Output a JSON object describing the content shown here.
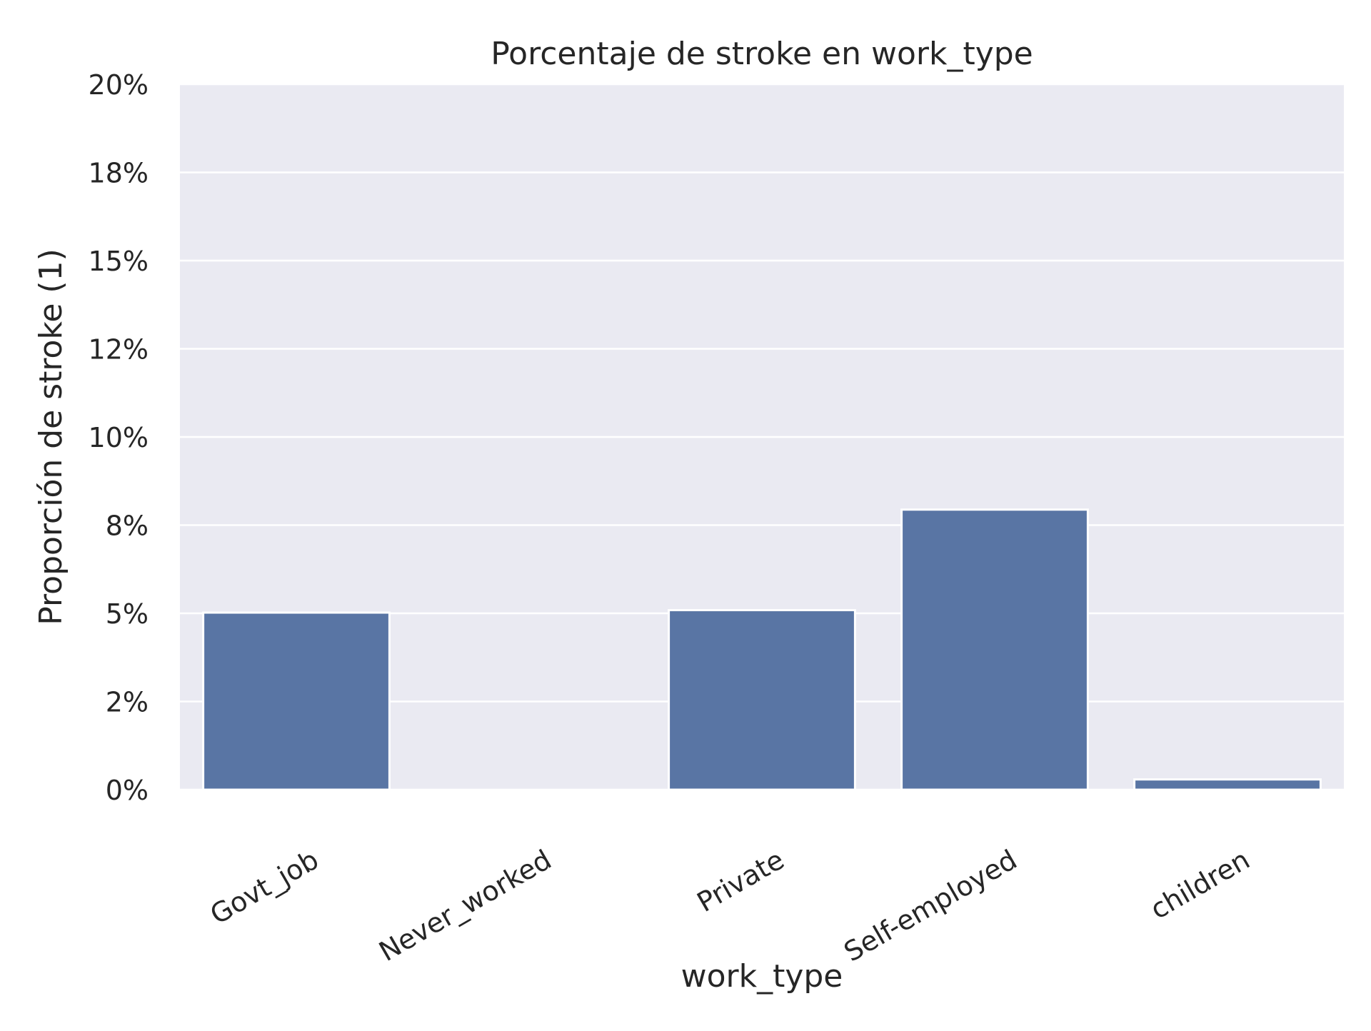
{
  "chart_data": {
    "type": "bar",
    "title": "Porcentaje de stroke en work_type",
    "xlabel": "work_type",
    "ylabel": "Proporción de stroke (1)",
    "categories": [
      "Govt_job",
      "Never_worked",
      "Private",
      "Self-employed",
      "children"
    ],
    "values": [
      0.0502,
      0.0,
      0.0509,
      0.0794,
      0.0029
    ],
    "ylim": [
      0,
      0.2
    ],
    "yticks": [
      0,
      0.025,
      0.05,
      0.075,
      0.1,
      0.125,
      0.15,
      0.175,
      0.2
    ],
    "ytick_labels": [
      "0%",
      "2%",
      "5%",
      "8%",
      "10%",
      "12%",
      "15%",
      "18%",
      "20%"
    ],
    "grid": true,
    "colors": {
      "bar": "#5975a4",
      "plot_background": "#eaeaf2",
      "grid": "#ffffff",
      "text": "#262626"
    }
  }
}
